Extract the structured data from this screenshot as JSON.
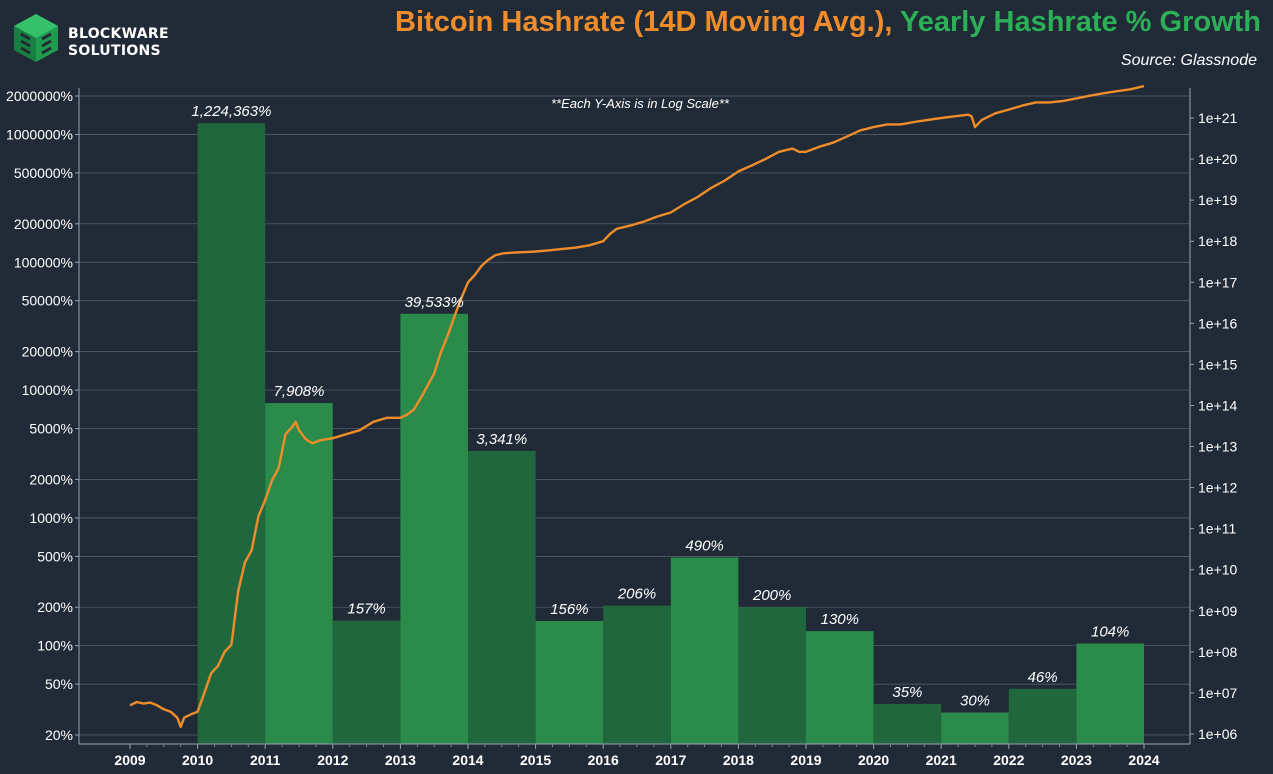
{
  "brand": {
    "line1": "BLOCKWARE",
    "line2": "SOLUTIONS",
    "logo_icon": "cube-icon"
  },
  "header": {
    "title_part1": "Bitcoin Hashrate (14D Moving Avg.)",
    "title_separator": ",",
    "title_part2": "Yearly Hashrate % Growth",
    "source": "Source: Glassnode"
  },
  "colors": {
    "background": "#212a37",
    "hashrate_line": "#f08d2a",
    "bar_dark": "#21673e",
    "bar_light": "#2a8b4a",
    "title_orange": "#f08d2a",
    "title_green": "#2bb057"
  },
  "chart_data": {
    "type": "bar",
    "annotation": "**Each Y-Axis is in Log Scale**",
    "x_ticks": [
      "2009",
      "2010",
      "2011",
      "2012",
      "2013",
      "2014",
      "2015",
      "2016",
      "2017",
      "2018",
      "2019",
      "2020",
      "2021",
      "2022",
      "2023",
      "2024"
    ],
    "left_axis": {
      "scale": "log",
      "unit": "%",
      "ticks": [
        20,
        50,
        100,
        200,
        500,
        1000,
        2000,
        5000,
        10000,
        20000,
        50000,
        100000,
        200000,
        500000,
        1000000,
        2000000
      ],
      "tick_labels": [
        "20%",
        "50%",
        "100%",
        "200%",
        "500%",
        "1000%",
        "2000%",
        "5000%",
        "10000%",
        "20000%",
        "50000%",
        "100000%",
        "200000%",
        "500000%",
        "1000000%",
        "2000000%"
      ]
    },
    "right_axis": {
      "scale": "log",
      "ticks": [
        1000000.0,
        10000000.0,
        100000000.0,
        1000000000.0,
        10000000000.0,
        100000000000.0,
        1000000000000.0,
        10000000000000.0,
        100000000000000.0,
        1000000000000000.0,
        1e+16,
        1e+17,
        1e+18,
        1e+19,
        1e+20,
        1e+21
      ],
      "tick_labels": [
        "1e+06",
        "1e+07",
        "1e+08",
        "1e+09",
        "1e+10",
        "1e+11",
        "1e+12",
        "1e+13",
        "1e+14",
        "1e+15",
        "1e+16",
        "1e+17",
        "1e+18",
        "1e+19",
        "1e+20",
        "1e+21"
      ]
    },
    "bars": [
      {
        "start": 2010,
        "end": 2011,
        "value": 1224363,
        "label": "1,224,363%"
      },
      {
        "start": 2011,
        "end": 2012,
        "value": 7908,
        "label": "7,908%"
      },
      {
        "start": 2012,
        "end": 2013,
        "value": 157,
        "label": "157%"
      },
      {
        "start": 2013,
        "end": 2014,
        "value": 39533,
        "label": "39,533%"
      },
      {
        "start": 2014,
        "end": 2015,
        "value": 3341,
        "label": "3,341%"
      },
      {
        "start": 2015,
        "end": 2016,
        "value": 156,
        "label": "156%"
      },
      {
        "start": 2016,
        "end": 2017,
        "value": 206,
        "label": "206%"
      },
      {
        "start": 2017,
        "end": 2018,
        "value": 490,
        "label": "490%"
      },
      {
        "start": 2018,
        "end": 2019,
        "value": 200,
        "label": "200%"
      },
      {
        "start": 2019,
        "end": 2020,
        "value": 130,
        "label": "130%"
      },
      {
        "start": 2020,
        "end": 2021,
        "value": 35,
        "label": "35%"
      },
      {
        "start": 2021,
        "end": 2022,
        "value": 30,
        "label": "30%"
      },
      {
        "start": 2022,
        "end": 2023,
        "value": 46,
        "label": "46%"
      },
      {
        "start": 2023,
        "end": 2024,
        "value": 104,
        "label": "104%"
      }
    ],
    "hashrate_line": {
      "x": [
        2009.0,
        2009.1,
        2009.2,
        2009.3,
        2009.4,
        2009.5,
        2009.6,
        2009.7,
        2009.75,
        2009.8,
        2009.9,
        2010.0,
        2010.1,
        2010.2,
        2010.3,
        2010.4,
        2010.5,
        2010.6,
        2010.7,
        2010.8,
        2010.9,
        2011.0,
        2011.1,
        2011.2,
        2011.3,
        2011.4,
        2011.45,
        2011.5,
        2011.6,
        2011.7,
        2011.8,
        2011.9,
        2012.0,
        2012.2,
        2012.4,
        2012.6,
        2012.8,
        2013.0,
        2013.1,
        2013.2,
        2013.3,
        2013.4,
        2013.5,
        2013.6,
        2013.7,
        2013.8,
        2013.9,
        2014.0,
        2014.1,
        2014.2,
        2014.3,
        2014.4,
        2014.5,
        2014.6,
        2014.7,
        2014.8,
        2014.9,
        2015.0,
        2015.2,
        2015.4,
        2015.6,
        2015.8,
        2016.0,
        2016.1,
        2016.2,
        2016.4,
        2016.6,
        2016.8,
        2017.0,
        2017.2,
        2017.4,
        2017.6,
        2017.8,
        2018.0,
        2018.2,
        2018.4,
        2018.6,
        2018.8,
        2018.9,
        2019.0,
        2019.2,
        2019.4,
        2019.6,
        2019.8,
        2020.0,
        2020.2,
        2020.4,
        2020.6,
        2020.8,
        2021.0,
        2021.2,
        2021.4,
        2021.45,
        2021.5,
        2021.6,
        2021.8,
        2022.0,
        2022.2,
        2022.4,
        2022.6,
        2022.8,
        2023.0,
        2023.2,
        2023.4,
        2023.6,
        2023.8,
        2024.0
      ],
      "y": [
        5000000.0,
        6000000.0,
        5500000.0,
        5800000.0,
        5000000.0,
        4000000.0,
        3500000.0,
        2500000.0,
        1500000.0,
        2500000.0,
        3000000.0,
        3500000.0,
        10000000.0,
        30000000.0,
        45000000.0,
        100000000.0,
        150000000.0,
        3000000000.0,
        15000000000.0,
        30000000000.0,
        200000000000.0,
        500000000000.0,
        1500000000000.0,
        3000000000000.0,
        20000000000000.0,
        30000000000000.0,
        40000000000000.0,
        25000000000000.0,
        15000000000000.0,
        12000000000000.0,
        14000000000000.0,
        15000000000000.0,
        16000000000000.0,
        20000000000000.0,
        25000000000000.0,
        40000000000000.0,
        50000000000000.0,
        50000000000000.0,
        60000000000000.0,
        80000000000000.0,
        150000000000000.0,
        300000000000000.0,
        600000000000000.0,
        2000000000000000.0,
        5000000000000000.0,
        1.5e+16,
        4e+16,
        1e+17,
        1.5e+17,
        2.5e+17,
        3.5e+17,
        4.5e+17,
        5e+17,
        5.2e+17,
        5.3e+17,
        5.4e+17,
        5.5e+17,
        5.6e+17,
        6e+17,
        6.5e+17,
        7e+17,
        8e+17,
        1e+18,
        1.5e+18,
        2e+18,
        2.4e+18,
        3e+18,
        4e+18,
        5e+18,
        8e+18,
        1.2e+19,
        2e+19,
        3e+19,
        5e+19,
        7e+19,
        1e+20,
        1.5e+20,
        1.8e+20,
        1.5e+20,
        1.5e+20,
        2e+20,
        2.5e+20,
        3.5e+20,
        5e+20,
        6e+20,
        7e+20,
        7e+20,
        8e+20,
        9e+20,
        1e+21,
        1.1e+21,
        1.2e+21,
        1.1e+21,
        6e+20,
        9e+20,
        1.3e+21,
        1.6e+21,
        2e+21,
        2.4e+21,
        2.4e+21,
        2.6e+21,
        3e+21,
        3.5e+21,
        4e+21,
        4.5e+21,
        5e+21,
        6e+21
      ]
    }
  }
}
